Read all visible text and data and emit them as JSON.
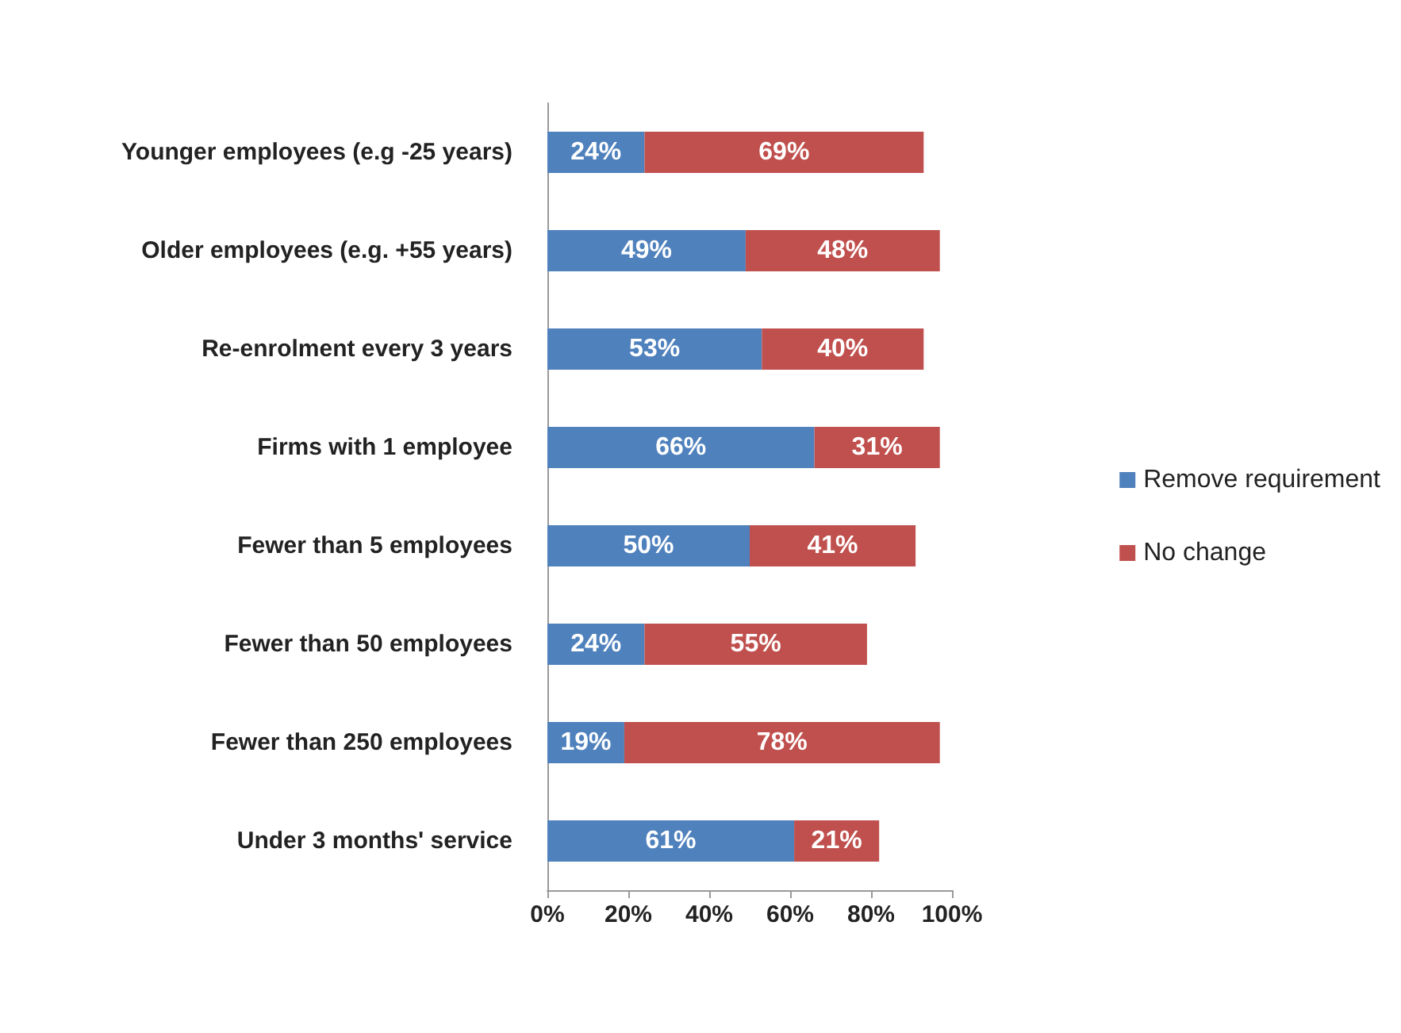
{
  "chart_data": {
    "type": "bar",
    "orientation": "horizontal",
    "stacked": true,
    "categories": [
      "Younger employees (e.g -25 years)",
      "Older employees (e.g. +55 years)",
      "Re-enrolment every 3 years",
      "Firms with 1 employee",
      "Fewer than 5 employees",
      "Fewer than 50 employees",
      "Fewer than 250 employees",
      "Under 3 months' service"
    ],
    "series": [
      {
        "name": "Remove requirement",
        "color": "#4f81bd",
        "values": [
          24,
          49,
          53,
          66,
          50,
          24,
          19,
          61
        ],
        "value_labels": [
          "24%",
          "49%",
          "53%",
          "66%",
          "50%",
          "24%",
          "19%",
          "61%"
        ]
      },
      {
        "name": "No change",
        "color": "#c0504d",
        "values": [
          69,
          48,
          40,
          31,
          41,
          55,
          78,
          21
        ],
        "value_labels": [
          "69%",
          "48%",
          "40%",
          "31%",
          "41%",
          "55%",
          "78%",
          "21%"
        ]
      }
    ],
    "xlim": [
      0,
      100
    ],
    "xticks": [
      {
        "value": 0,
        "label": "0%"
      },
      {
        "value": 20,
        "label": "20%"
      },
      {
        "value": 40,
        "label": "40%"
      },
      {
        "value": 60,
        "label": "60%"
      },
      {
        "value": 80,
        "label": "80%"
      },
      {
        "value": 100,
        "label": "100%"
      }
    ],
    "legend": "right",
    "grid": false
  }
}
